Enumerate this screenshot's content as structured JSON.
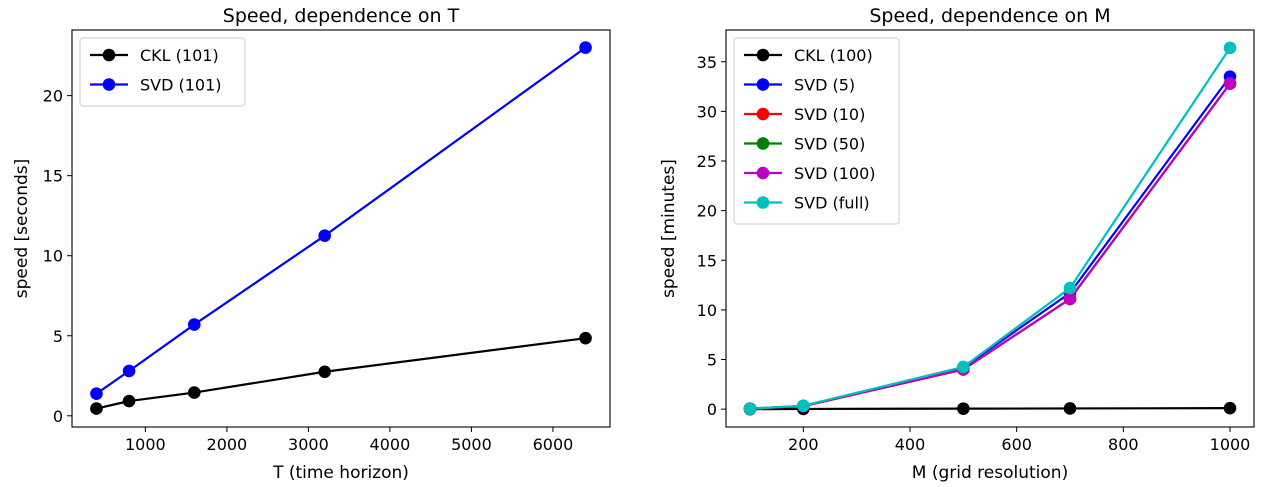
{
  "chart_data": [
    {
      "type": "line",
      "title": "Speed, dependence on T",
      "xlabel": "T (time horizon)",
      "ylabel": "speed [seconds]",
      "xlim": [
        100,
        6700
      ],
      "ylim": [
        -0.7,
        24.1
      ],
      "xticks": [
        1000,
        2000,
        3000,
        4000,
        5000,
        6000
      ],
      "yticks": [
        0,
        5,
        10,
        15,
        20
      ],
      "legend_position": "upper-left",
      "grid": false,
      "series": [
        {
          "name": "CKL (101)",
          "color": "#000000",
          "x": [
            400,
            800,
            1600,
            3200,
            6400
          ],
          "y": [
            0.45,
            0.92,
            1.45,
            2.75,
            4.85
          ]
        },
        {
          "name": "SVD (101)",
          "color": "#0000ff",
          "x": [
            400,
            800,
            1600,
            3200,
            6400
          ],
          "y": [
            1.38,
            2.8,
            5.7,
            11.25,
            23.0
          ]
        }
      ]
    },
    {
      "type": "line",
      "title": "Speed, dependence on M",
      "xlabel": "M (grid resolution)",
      "ylabel": "speed [minutes]",
      "xlim": [
        55,
        1045
      ],
      "ylim": [
        -1.8,
        38.2
      ],
      "xticks": [
        200,
        400,
        600,
        800,
        1000
      ],
      "yticks": [
        0,
        5,
        10,
        15,
        20,
        25,
        30,
        35
      ],
      "legend_position": "upper-left",
      "grid": false,
      "series": [
        {
          "name": "CKL (100)",
          "color": "#000000",
          "x": [
            100,
            200,
            500,
            700,
            1000
          ],
          "y": [
            0.0,
            0.02,
            0.05,
            0.07,
            0.1
          ]
        },
        {
          "name": "SVD (5)",
          "color": "#0000ff",
          "x": [
            100,
            200,
            500,
            700,
            1000
          ],
          "y": [
            0.05,
            0.3,
            4.2,
            11.7,
            33.5
          ]
        },
        {
          "name": "SVD (10)",
          "color": "#ff0000",
          "x": [
            100,
            200,
            500,
            700,
            1000
          ],
          "y": [
            0.05,
            0.3,
            4.0,
            11.1,
            32.8
          ]
        },
        {
          "name": "SVD (50)",
          "color": "#008000",
          "x": [
            100,
            200,
            500,
            700,
            1000
          ],
          "y": [
            0.05,
            0.3,
            4.0,
            11.1,
            32.8
          ]
        },
        {
          "name": "SVD (100)",
          "color": "#bf00bf",
          "x": [
            100,
            200,
            500,
            700,
            1000
          ],
          "y": [
            0.05,
            0.3,
            4.0,
            11.1,
            32.8
          ]
        },
        {
          "name": "SVD (full)",
          "color": "#00bfbf",
          "x": [
            100,
            200,
            500,
            700,
            1000
          ],
          "y": [
            0.05,
            0.35,
            4.25,
            12.2,
            36.4
          ]
        }
      ]
    }
  ]
}
